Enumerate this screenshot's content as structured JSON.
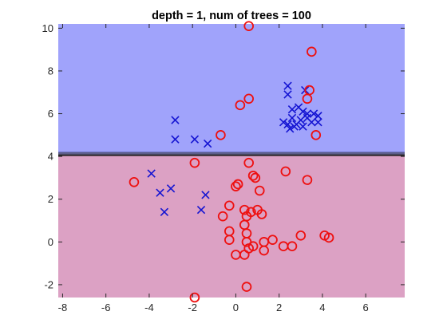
{
  "chart_data": {
    "type": "scatter",
    "title": "depth = 1, num of trees = 100",
    "xlabel": "",
    "ylabel": "",
    "xlim": [
      -8.2,
      7.8
    ],
    "ylim": [
      -2.6,
      10.2
    ],
    "xticks": [
      "-8",
      "-6",
      "-4",
      "-2",
      "0",
      "2",
      "4",
      "6"
    ],
    "yticks": [
      "-2",
      "0",
      "2",
      "4",
      "6",
      "8",
      "10"
    ],
    "grid": false,
    "background": "#ffffff",
    "decision_boundary": {
      "y": 4.1,
      "upper_region_color": "#a0a3fb",
      "lower_region_color": "#dca1c4",
      "line_color": "#1a1a1a",
      "edge_color": "#6f74c8"
    },
    "series": [
      {
        "marker": "x",
        "color": "#1414d2",
        "points": [
          [
            -2.8,
            5.7
          ],
          [
            -2.8,
            4.8
          ],
          [
            -1.9,
            4.8
          ],
          [
            -1.3,
            4.6
          ],
          [
            2.4,
            7.3
          ],
          [
            2.4,
            6.9
          ],
          [
            3.2,
            7.1
          ],
          [
            2.6,
            6.2
          ],
          [
            2.9,
            6.3
          ],
          [
            3.1,
            6.1
          ],
          [
            3.3,
            6.0
          ],
          [
            3.6,
            6.0
          ],
          [
            2.2,
            5.6
          ],
          [
            2.4,
            5.5
          ],
          [
            2.6,
            5.8
          ],
          [
            2.8,
            5.5
          ],
          [
            3.0,
            5.7
          ],
          [
            3.3,
            5.8
          ],
          [
            3.5,
            5.6
          ],
          [
            3.8,
            5.9
          ],
          [
            3.8,
            5.6
          ],
          [
            2.5,
            5.3
          ],
          [
            2.7,
            5.4
          ],
          [
            3.1,
            5.4
          ],
          [
            -3.9,
            3.2
          ],
          [
            -3.5,
            2.3
          ],
          [
            -3.0,
            2.5
          ],
          [
            -3.3,
            1.4
          ],
          [
            -1.4,
            2.2
          ],
          [
            -1.6,
            1.5
          ]
        ]
      },
      {
        "marker": "o",
        "color": "#ee1010",
        "points": [
          [
            0.6,
            10.1
          ],
          [
            3.5,
            8.9
          ],
          [
            0.6,
            6.7
          ],
          [
            0.2,
            6.4
          ],
          [
            3.4,
            7.1
          ],
          [
            3.3,
            6.7
          ],
          [
            3.7,
            5.0
          ],
          [
            -0.7,
            5.0
          ],
          [
            -1.9,
            3.7
          ],
          [
            0.6,
            3.7
          ],
          [
            0.8,
            3.1
          ],
          [
            0.9,
            3.0
          ],
          [
            2.3,
            3.3
          ],
          [
            -4.7,
            2.8
          ],
          [
            3.3,
            2.9
          ],
          [
            0.0,
            2.6
          ],
          [
            0.1,
            2.7
          ],
          [
            1.1,
            2.4
          ],
          [
            -0.3,
            1.7
          ],
          [
            0.4,
            1.5
          ],
          [
            0.7,
            1.4
          ],
          [
            1.0,
            1.5
          ],
          [
            -0.6,
            1.2
          ],
          [
            0.5,
            1.2
          ],
          [
            1.2,
            1.3
          ],
          [
            0.4,
            0.8
          ],
          [
            -0.3,
            0.5
          ],
          [
            0.5,
            0.4
          ],
          [
            -0.3,
            0.1
          ],
          [
            0.5,
            0.0
          ],
          [
            1.3,
            0.0
          ],
          [
            1.7,
            0.1
          ],
          [
            2.2,
            -0.2
          ],
          [
            2.6,
            -0.2
          ],
          [
            3.0,
            0.3
          ],
          [
            4.1,
            0.3
          ],
          [
            4.3,
            0.2
          ],
          [
            0.0,
            -0.6
          ],
          [
            0.4,
            -0.6
          ],
          [
            0.6,
            -0.3
          ],
          [
            0.8,
            -0.2
          ],
          [
            1.3,
            -0.4
          ],
          [
            0.5,
            -2.1
          ],
          [
            -1.9,
            -2.6
          ]
        ]
      }
    ]
  }
}
